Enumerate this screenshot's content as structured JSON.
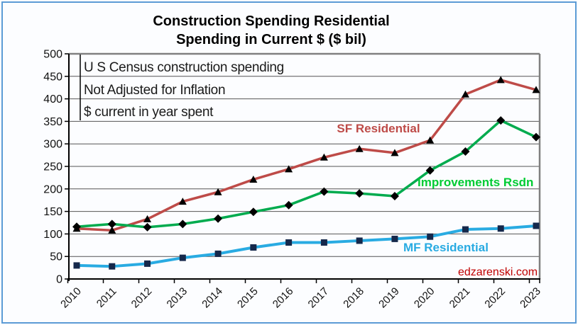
{
  "chart_data": {
    "type": "line",
    "title_line1": "Construction Spending Residential",
    "title_line2": "Spending in Current $ ($ bil)",
    "annotation_lines": [
      "U S Census construction spending",
      "Not Adjusted for Inflation",
      "$ current in year spent"
    ],
    "watermark": "edzarenski.com",
    "categories": [
      "2010",
      "2011",
      "2012",
      "2013",
      "2014",
      "2015",
      "2016",
      "2017",
      "2018",
      "2019",
      "2020",
      "2021",
      "2022",
      "2023"
    ],
    "xlabel": "",
    "ylabel": "",
    "ylim": [
      0,
      500
    ],
    "y_ticks": [
      0,
      50,
      100,
      150,
      200,
      250,
      300,
      350,
      400,
      450,
      500
    ],
    "grid": true,
    "legend_position": "inline-labels",
    "series": [
      {
        "name": "SF Residential",
        "values": [
          112,
          108,
          133,
          172,
          193,
          221,
          244,
          270,
          289,
          280,
          308,
          410,
          442,
          420
        ],
        "color": "#BE4B48",
        "label_color": "#BE4B48",
        "marker": "triangle",
        "marker_color": "#000000"
      },
      {
        "name": "Improvements Rsdn",
        "values": [
          116,
          122,
          115,
          122,
          134,
          149,
          164,
          194,
          190,
          184,
          241,
          283,
          352,
          315
        ],
        "color": "#00AB4E",
        "label_color": "#00CC33",
        "marker": "diamond",
        "marker_color": "#000000"
      },
      {
        "name": "MF Residential",
        "values": [
          30,
          28,
          34,
          47,
          56,
          70,
          81,
          81,
          85,
          89,
          94,
          110,
          112,
          118
        ],
        "color": "#29ABE2",
        "label_color": "#29ABE2",
        "marker": "square",
        "marker_color": "#15284B"
      }
    ],
    "colors": {
      "frame_border": "#5B9BD5",
      "background": "#FCFDFF",
      "grid": "#555555",
      "axis": "#000000",
      "plot_border": "#808080",
      "tick_label": "#111111",
      "annotation_text": "#1a1a1a",
      "watermark_color": "#C00000"
    }
  }
}
